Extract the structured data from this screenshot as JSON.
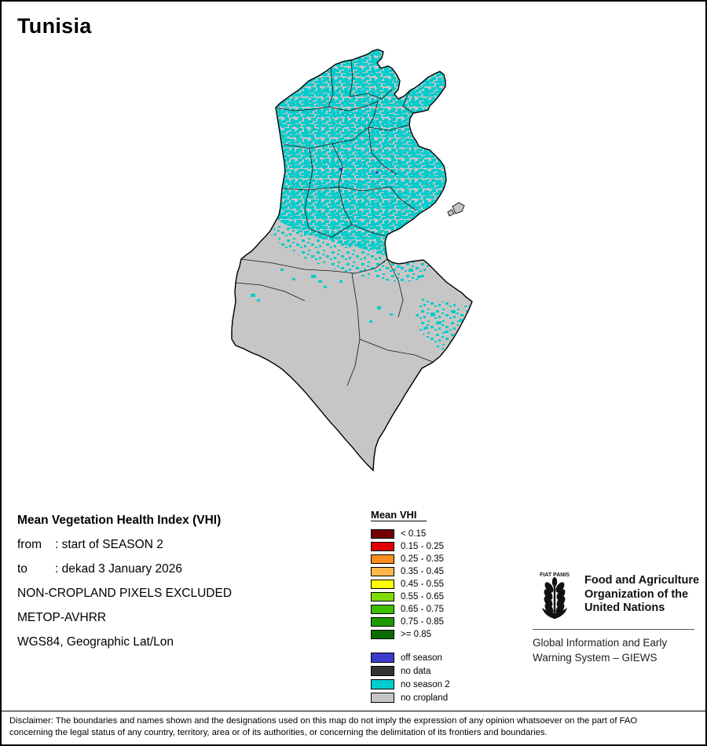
{
  "title": "Tunisia",
  "info": {
    "heading": "Mean Vegetation Health Index (VHI)",
    "from": {
      "label": "from",
      "value": ": start of SEASON 2"
    },
    "to": {
      "label": "to",
      "value": ": dekad 3 January 2026"
    },
    "lines": [
      "NON-CROPLAND PIXELS EXCLUDED",
      "METOP-AVHRR",
      "WGS84, Geographic Lat/Lon"
    ]
  },
  "legend": {
    "title": "Mean VHI",
    "classes": [
      {
        "label": "< 0.15",
        "color": "#720000"
      },
      {
        "label": "0.15 - 0.25",
        "color": "#e10000"
      },
      {
        "label": "0.25 - 0.35",
        "color": "#ff8d1e"
      },
      {
        "label": "0.35 - 0.45",
        "color": "#ffb84a"
      },
      {
        "label": "0.45 - 0.55",
        "color": "#ffff00"
      },
      {
        "label": "0.55 - 0.65",
        "color": "#7ddc00"
      },
      {
        "label": "0.65 - 0.75",
        "color": "#3fbf00"
      },
      {
        "label": "0.75 - 0.85",
        "color": "#1d9b00"
      },
      {
        "label": ">= 0.85",
        "color": "#0a6b00"
      }
    ],
    "categories": [
      {
        "label": "off season",
        "color": "#3c3ccc"
      },
      {
        "label": "no data",
        "color": "#333333"
      },
      {
        "label": "no season 2",
        "color": "#00cccc"
      },
      {
        "label": "no cropland",
        "color": "#c6c6c6"
      }
    ]
  },
  "fao": {
    "logo_motto": "FIAT PANIS",
    "org_lines": [
      "Food and Agriculture",
      "Organization of the",
      "United Nations"
    ],
    "giews_lines": [
      "Global Information and Early",
      "Warning System – GIEWS"
    ]
  },
  "disclaimer": "Disclaimer: The boundaries and names shown and the designations used on this map do not imply the expression of any opinion whatsoever on the part of FAO concerning the legal status of any country, territory, area or of its authorities, or concerning the delimitation of its frontiers and boundaries.",
  "map": {
    "region": "Tunisia",
    "colors": {
      "no_season2": "#00cccc",
      "no_cropland": "#c6c6c6",
      "off_season": "#3c3ccc",
      "boundary": "#000000",
      "background": "#ffffff"
    }
  }
}
